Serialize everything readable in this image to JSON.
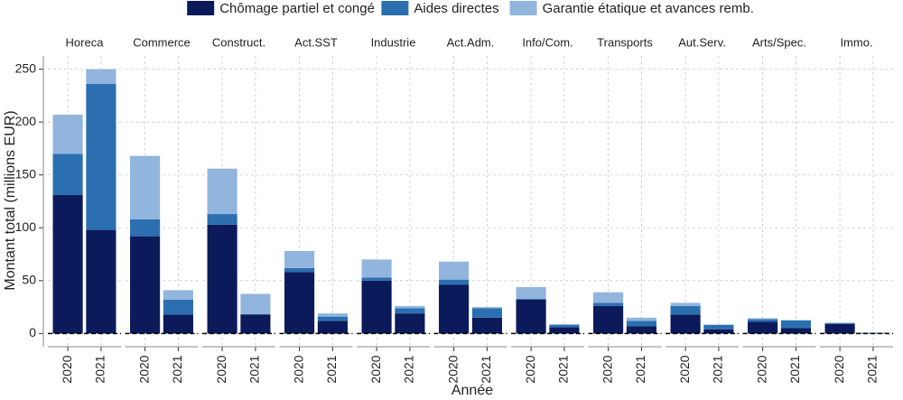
{
  "chart_data": {
    "type": "faceted-stacked-bar",
    "x_label": "Année",
    "y_label": "Montant total (millions EUR)",
    "legend": "top",
    "grid": true,
    "facets": [
      "Horeca",
      "Commerce",
      "Construct.",
      "Act.SST",
      "Industrie",
      "Act.Adm.",
      "Info/Com.",
      "Transports",
      "Aut.Serv.",
      "Arts/Spec.",
      "Immo."
    ],
    "categories": [
      "2020",
      "2021"
    ],
    "ylim": [
      -12.5,
      262.5
    ],
    "yticks": [
      0,
      50,
      100,
      150,
      200,
      250
    ],
    "series": [
      {
        "name": "Chômage partiel et congé",
        "color": "#0b1a5a",
        "values": [
          [
            131,
            98
          ],
          [
            92,
            18
          ],
          [
            103,
            18
          ],
          [
            58,
            12
          ],
          [
            50,
            19
          ],
          [
            46,
            15
          ],
          [
            32,
            6
          ],
          [
            26,
            7
          ],
          [
            18,
            4
          ],
          [
            11,
            5
          ],
          [
            9,
            0.5
          ]
        ]
      },
      {
        "name": "Aides directes",
        "color": "#2b6fb0",
        "values": [
          [
            39,
            138
          ],
          [
            16,
            14
          ],
          [
            10,
            0.5
          ],
          [
            4,
            4
          ],
          [
            3,
            5
          ],
          [
            5,
            9
          ],
          [
            1,
            2
          ],
          [
            3,
            5
          ],
          [
            8,
            4
          ],
          [
            2.5,
            7.5
          ],
          [
            1,
            0.3
          ]
        ]
      },
      {
        "name": "Garantie étatique et avances remb.",
        "color": "#92b5de",
        "values": [
          [
            37,
            14
          ],
          [
            60,
            9
          ],
          [
            43,
            19
          ],
          [
            16,
            3
          ],
          [
            17,
            2
          ],
          [
            17,
            1
          ],
          [
            11,
            1
          ],
          [
            10,
            3
          ],
          [
            3,
            0.5
          ],
          [
            1,
            0
          ],
          [
            0,
            0
          ]
        ]
      }
    ]
  }
}
